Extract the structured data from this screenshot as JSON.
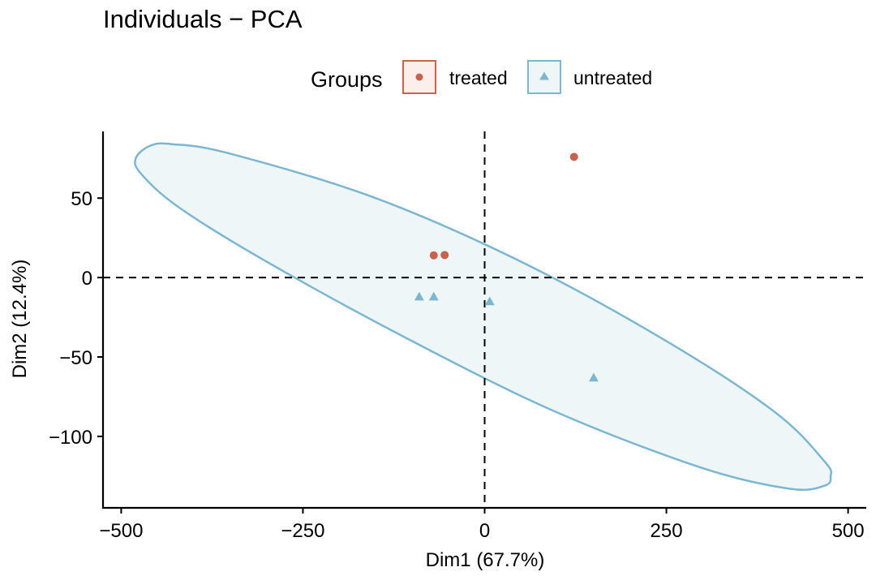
{
  "chart_data": {
    "type": "scatter",
    "title": "Individuals − PCA",
    "xlabel": "Dim1 (67.7%)",
    "ylabel": "Dim2 (12.4%)",
    "xlim": [
      -525,
      525
    ],
    "ylim": [
      -145,
      92
    ],
    "xticks": [
      -500,
      -250,
      0,
      250,
      500
    ],
    "xtick_labels": [
      "−500",
      "−250",
      "0",
      "250",
      "500"
    ],
    "yticks": [
      -100,
      -50,
      0,
      50
    ],
    "ytick_labels": [
      "−100",
      "−50",
      "0",
      "50"
    ],
    "reference_lines": {
      "x": 0,
      "y": 0,
      "style": "dashed"
    },
    "legend": {
      "title": "Groups",
      "position": "top"
    },
    "series": [
      {
        "name": "treated",
        "marker": "circle",
        "color": "#C9634F",
        "points": [
          [
            -70,
            14
          ],
          [
            -55,
            14.2
          ],
          [
            123,
            76
          ]
        ]
      },
      {
        "name": "untreated",
        "marker": "triangle",
        "color": "#7DB7CF",
        "points": [
          [
            -90,
            -12
          ],
          [
            -70,
            -12
          ],
          [
            7,
            -15
          ],
          [
            150,
            -63
          ]
        ]
      }
    ],
    "ellipses": [
      {
        "group": "untreated",
        "stroke": "#7DB7CF",
        "fill": "#EEF6F8",
        "outline": [
          [
            -460,
            83
          ],
          [
            -480,
            75
          ],
          [
            -472,
            65
          ],
          [
            -420,
            44
          ],
          [
            -300,
            10
          ],
          [
            -100,
            -40
          ],
          [
            100,
            -85
          ],
          [
            300,
            -120
          ],
          [
            420,
            -133
          ],
          [
            468,
            -131
          ],
          [
            476,
            -125
          ],
          [
            468,
            -116
          ],
          [
            400,
            -85
          ],
          [
            250,
            -40
          ],
          [
            50,
            10
          ],
          [
            -150,
            50
          ],
          [
            -350,
            78
          ],
          [
            -430,
            84
          ]
        ]
      }
    ]
  }
}
